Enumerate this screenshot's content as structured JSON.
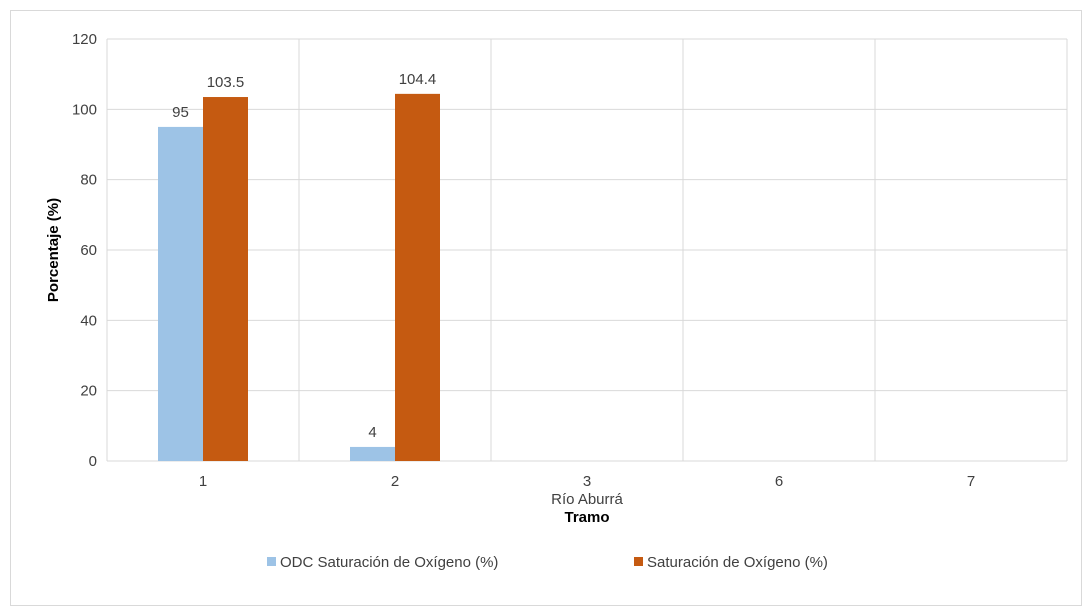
{
  "chart_data": {
    "type": "bar",
    "categories": [
      "1",
      "2",
      "3",
      "6",
      "7"
    ],
    "group_label": "Río Aburrá",
    "xlabel": "Tramo",
    "ylabel": "Porcentaje (%)",
    "ylim": [
      0,
      120
    ],
    "yticks": [
      "0",
      "20",
      "40",
      "60",
      "80",
      "100",
      "120"
    ],
    "grid": true,
    "legend_position": "bottom",
    "series": [
      {
        "name": "ODC Saturación de Oxígeno (%)",
        "color": "#9dc3e6",
        "values": [
          95,
          4,
          null,
          null,
          null
        ],
        "labels": [
          "95",
          "4",
          "",
          "",
          ""
        ]
      },
      {
        "name": "Saturación de Oxígeno (%)",
        "color": "#c55a11",
        "values": [
          103.5,
          104.4,
          null,
          null,
          null
        ],
        "labels": [
          "103.5",
          "104.4",
          "",
          "",
          ""
        ]
      }
    ]
  }
}
